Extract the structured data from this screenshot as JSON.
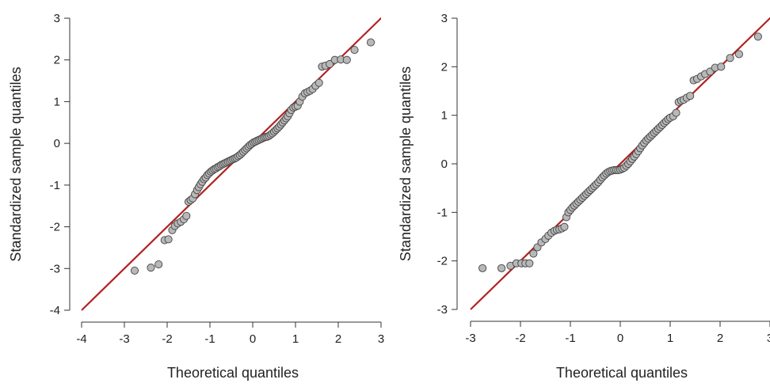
{
  "chart_data": [
    {
      "type": "scatter",
      "xlabel": "Theoretical quantiles",
      "ylabel": "Standardized sample quantiles",
      "xlim": [
        -4,
        3
      ],
      "ylim": [
        -4,
        3
      ],
      "xticks": [
        "-4",
        "-3",
        "-2",
        "-1",
        "0",
        "1",
        "2",
        "3"
      ],
      "yticks": [
        "-4",
        "-3",
        "-2",
        "-1",
        "0",
        "1",
        "2",
        "3"
      ],
      "grid": false,
      "reference_line": {
        "slope": 1,
        "intercept": 0,
        "color": "#b22222"
      },
      "point_color": "#b8b8b8",
      "points": [
        [
          -2.76,
          -3.05
        ],
        [
          -2.38,
          -2.98
        ],
        [
          -2.2,
          -2.9
        ],
        [
          -2.06,
          -2.32
        ],
        [
          -1.97,
          -2.3
        ],
        [
          -1.88,
          -2.08
        ],
        [
          -1.82,
          -1.98
        ],
        [
          -1.75,
          -1.92
        ],
        [
          -1.68,
          -1.88
        ],
        [
          -1.61,
          -1.82
        ],
        [
          -1.55,
          -1.74
        ],
        [
          -1.5,
          -1.4
        ],
        [
          -1.45,
          -1.36
        ],
        [
          -1.4,
          -1.32
        ],
        [
          -1.35,
          -1.22
        ],
        [
          -1.3,
          -1.12
        ],
        [
          -1.26,
          -1.05
        ],
        [
          -1.22,
          -0.98
        ],
        [
          -1.18,
          -0.92
        ],
        [
          -1.14,
          -0.86
        ],
        [
          -1.1,
          -0.82
        ],
        [
          -1.06,
          -0.76
        ],
        [
          -1.02,
          -0.72
        ],
        [
          -0.98,
          -0.68
        ],
        [
          -0.94,
          -0.65
        ],
        [
          -0.9,
          -0.62
        ],
        [
          -0.86,
          -0.6
        ],
        [
          -0.82,
          -0.57
        ],
        [
          -0.78,
          -0.55
        ],
        [
          -0.74,
          -0.52
        ],
        [
          -0.7,
          -0.5
        ],
        [
          -0.66,
          -0.48
        ],
        [
          -0.62,
          -0.46
        ],
        [
          -0.58,
          -0.44
        ],
        [
          -0.54,
          -0.42
        ],
        [
          -0.5,
          -0.4
        ],
        [
          -0.46,
          -0.38
        ],
        [
          -0.42,
          -0.36
        ],
        [
          -0.38,
          -0.34
        ],
        [
          -0.34,
          -0.31
        ],
        [
          -0.3,
          -0.28
        ],
        [
          -0.26,
          -0.24
        ],
        [
          -0.22,
          -0.2
        ],
        [
          -0.18,
          -0.16
        ],
        [
          -0.14,
          -0.12
        ],
        [
          -0.1,
          -0.08
        ],
        [
          -0.06,
          -0.04
        ],
        [
          -0.02,
          -0.01
        ],
        [
          0.02,
          0.02
        ],
        [
          0.06,
          0.04
        ],
        [
          0.1,
          0.06
        ],
        [
          0.14,
          0.08
        ],
        [
          0.18,
          0.1
        ],
        [
          0.22,
          0.12
        ],
        [
          0.26,
          0.14
        ],
        [
          0.3,
          0.15
        ],
        [
          0.34,
          0.16
        ],
        [
          0.38,
          0.18
        ],
        [
          0.42,
          0.21
        ],
        [
          0.46,
          0.24
        ],
        [
          0.5,
          0.28
        ],
        [
          0.54,
          0.32
        ],
        [
          0.58,
          0.36
        ],
        [
          0.62,
          0.4
        ],
        [
          0.66,
          0.45
        ],
        [
          0.7,
          0.5
        ],
        [
          0.74,
          0.55
        ],
        [
          0.78,
          0.6
        ],
        [
          0.82,
          0.65
        ],
        [
          0.86,
          0.72
        ],
        [
          0.9,
          0.8
        ],
        [
          0.95,
          0.86
        ],
        [
          1.0,
          0.88
        ],
        [
          1.05,
          0.9
        ],
        [
          1.1,
          1.0
        ],
        [
          1.16,
          1.12
        ],
        [
          1.22,
          1.2
        ],
        [
          1.28,
          1.23
        ],
        [
          1.34,
          1.26
        ],
        [
          1.4,
          1.3
        ],
        [
          1.47,
          1.38
        ],
        [
          1.55,
          1.45
        ],
        [
          1.62,
          1.84
        ],
        [
          1.7,
          1.86
        ],
        [
          1.8,
          1.9
        ],
        [
          1.92,
          2.0
        ],
        [
          2.06,
          2.01
        ],
        [
          2.2,
          2.0
        ],
        [
          2.38,
          2.24
        ],
        [
          2.76,
          2.42
        ]
      ]
    },
    {
      "type": "scatter",
      "xlabel": "Theoretical quantiles",
      "ylabel": "Standardized sample quantiles",
      "xlim": [
        -3,
        3
      ],
      "ylim": [
        -3,
        3
      ],
      "xticks": [
        "-3",
        "-2",
        "-1",
        "0",
        "1",
        "2",
        "3"
      ],
      "yticks": [
        "-3",
        "-2",
        "-1",
        "0",
        "1",
        "2",
        "3"
      ],
      "grid": false,
      "reference_line": {
        "slope": 1,
        "intercept": 0,
        "color": "#b22222"
      },
      "point_color": "#b8b8b8",
      "points": [
        [
          -2.76,
          -2.15
        ],
        [
          -2.38,
          -2.15
        ],
        [
          -2.2,
          -2.1
        ],
        [
          -2.08,
          -2.05
        ],
        [
          -1.98,
          -2.05
        ],
        [
          -1.9,
          -2.05
        ],
        [
          -1.82,
          -2.05
        ],
        [
          -1.74,
          -1.85
        ],
        [
          -1.66,
          -1.72
        ],
        [
          -1.58,
          -1.62
        ],
        [
          -1.5,
          -1.55
        ],
        [
          -1.44,
          -1.48
        ],
        [
          -1.38,
          -1.42
        ],
        [
          -1.32,
          -1.38
        ],
        [
          -1.27,
          -1.36
        ],
        [
          -1.22,
          -1.35
        ],
        [
          -1.17,
          -1.33
        ],
        [
          -1.12,
          -1.3
        ],
        [
          -1.08,
          -1.1
        ],
        [
          -1.04,
          -1.0
        ],
        [
          -1.0,
          -0.95
        ],
        [
          -0.96,
          -0.9
        ],
        [
          -0.92,
          -0.86
        ],
        [
          -0.88,
          -0.82
        ],
        [
          -0.84,
          -0.78
        ],
        [
          -0.8,
          -0.74
        ],
        [
          -0.76,
          -0.7
        ],
        [
          -0.72,
          -0.66
        ],
        [
          -0.68,
          -0.62
        ],
        [
          -0.64,
          -0.58
        ],
        [
          -0.6,
          -0.54
        ],
        [
          -0.56,
          -0.5
        ],
        [
          -0.52,
          -0.46
        ],
        [
          -0.48,
          -0.42
        ],
        [
          -0.44,
          -0.38
        ],
        [
          -0.4,
          -0.33
        ],
        [
          -0.36,
          -0.28
        ],
        [
          -0.32,
          -0.24
        ],
        [
          -0.28,
          -0.2
        ],
        [
          -0.24,
          -0.17
        ],
        [
          -0.2,
          -0.15
        ],
        [
          -0.16,
          -0.14
        ],
        [
          -0.12,
          -0.13
        ],
        [
          -0.08,
          -0.13
        ],
        [
          -0.04,
          -0.13
        ],
        [
          0.0,
          -0.12
        ],
        [
          0.04,
          -0.1
        ],
        [
          0.08,
          -0.08
        ],
        [
          0.12,
          -0.04
        ],
        [
          0.16,
          0.0
        ],
        [
          0.2,
          0.05
        ],
        [
          0.24,
          0.1
        ],
        [
          0.28,
          0.15
        ],
        [
          0.32,
          0.2
        ],
        [
          0.36,
          0.26
        ],
        [
          0.4,
          0.32
        ],
        [
          0.44,
          0.38
        ],
        [
          0.48,
          0.43
        ],
        [
          0.52,
          0.48
        ],
        [
          0.56,
          0.52
        ],
        [
          0.6,
          0.56
        ],
        [
          0.64,
          0.6
        ],
        [
          0.68,
          0.64
        ],
        [
          0.72,
          0.68
        ],
        [
          0.76,
          0.72
        ],
        [
          0.8,
          0.76
        ],
        [
          0.84,
          0.8
        ],
        [
          0.88,
          0.84
        ],
        [
          0.92,
          0.88
        ],
        [
          0.96,
          0.92
        ],
        [
          1.0,
          0.95
        ],
        [
          1.06,
          0.98
        ],
        [
          1.12,
          1.05
        ],
        [
          1.17,
          1.27
        ],
        [
          1.22,
          1.3
        ],
        [
          1.27,
          1.32
        ],
        [
          1.33,
          1.36
        ],
        [
          1.4,
          1.4
        ],
        [
          1.47,
          1.72
        ],
        [
          1.54,
          1.75
        ],
        [
          1.62,
          1.8
        ],
        [
          1.7,
          1.85
        ],
        [
          1.8,
          1.9
        ],
        [
          1.9,
          1.98
        ],
        [
          2.02,
          2.0
        ],
        [
          2.2,
          2.18
        ],
        [
          2.38,
          2.26
        ],
        [
          2.76,
          2.62
        ]
      ]
    }
  ]
}
